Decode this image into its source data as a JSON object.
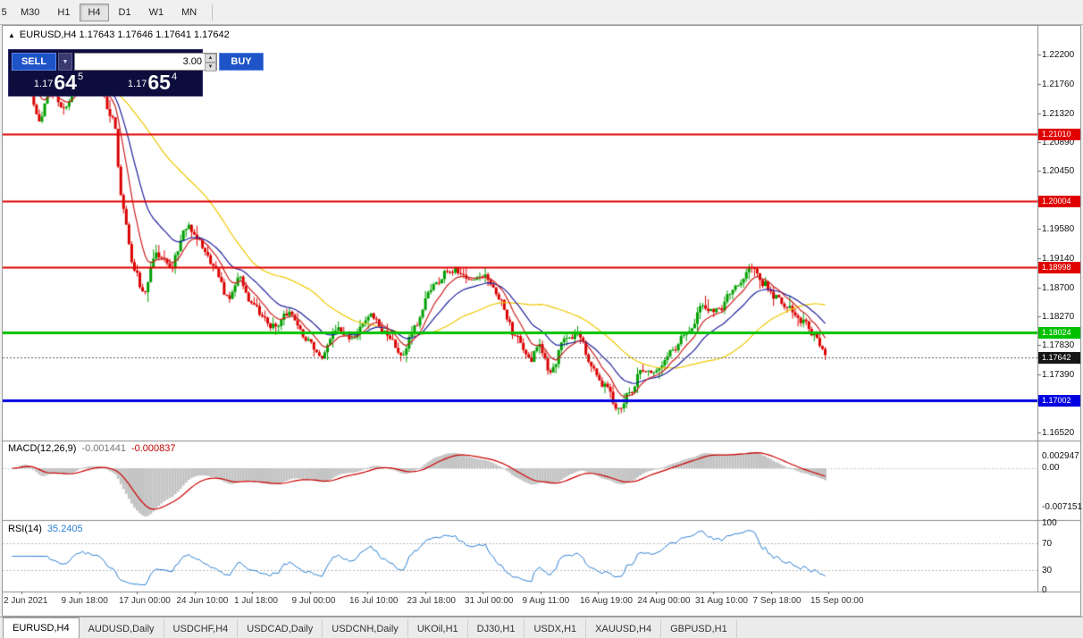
{
  "toolbar": {
    "timeframes": [
      {
        "label": "5",
        "active": false,
        "partial": true
      },
      {
        "label": "M30",
        "active": false,
        "partial": false
      },
      {
        "label": "H1",
        "active": false,
        "partial": false
      },
      {
        "label": "H4",
        "active": true,
        "partial": false
      },
      {
        "label": "D1",
        "active": false,
        "partial": false
      },
      {
        "label": "W1",
        "active": false,
        "partial": false
      },
      {
        "label": "MN",
        "active": false,
        "partial": false
      }
    ]
  },
  "chart_header": {
    "icon": "▲",
    "text": "EURUSD,H4 1.17643 1.17646 1.17641 1.17642"
  },
  "trade_panel": {
    "sell_label": "SELL",
    "buy_label": "BUY",
    "volume": "3.00",
    "dropdown_icon": "▼",
    "spinner_up": "▲",
    "spinner_down": "▼",
    "sell_price": {
      "prefix": "1.17",
      "big": "64",
      "sup": "5"
    },
    "buy_price": {
      "prefix": "1.17",
      "big": "65",
      "sup": "4"
    }
  },
  "price_scale": {
    "labels": [
      "1.22200",
      "1.21760",
      "1.21320",
      "1.20890",
      "1.20450",
      "1.20010",
      "1.19580",
      "1.19140",
      "1.18700",
      "1.18270",
      "1.17830",
      "1.17390",
      "1.16960",
      "1.16520"
    ]
  },
  "levels": [
    {
      "price": "1.21010",
      "color": "#e00000",
      "width": 2
    },
    {
      "price": "1.20004",
      "color": "#e00000",
      "width": 2
    },
    {
      "price": "1.18998",
      "color": "#e00000",
      "width": 2
    },
    {
      "price": "1.18024",
      "color": "#00c000",
      "width": 3
    },
    {
      "price": "1.17002",
      "color": "#0000e0",
      "width": 3
    }
  ],
  "current_price": {
    "price": "1.17642",
    "color": "#161616"
  },
  "macd": {
    "label": "MACD(12,26,9)",
    "value1": "-0.001441",
    "value2": "-0.000837",
    "scale_max": "0.002947",
    "scale_zero": "0.00",
    "scale_min": "-0.007151"
  },
  "rsi": {
    "label": "RSI(14)",
    "value": "35.2405",
    "scale": [
      "100",
      "70",
      "30",
      "0"
    ],
    "levels": [
      70,
      30
    ]
  },
  "time_axis": {
    "labels": [
      "2 Jun 2021",
      "9 Jun 18:00",
      "17 Jun 00:00",
      "24 Jun 10:00",
      "1 Jul 18:00",
      "9 Jul 00:00",
      "16 Jul 10:00",
      "23 Jul 18:00",
      "31 Jul 00:00",
      "9 Aug 11:00",
      "16 Aug 19:00",
      "24 Aug 00:00",
      "31 Aug 10:00",
      "7 Sep 18:00",
      "15 Sep 00:00"
    ]
  },
  "tabs": [
    {
      "label": "EURUSD,H4",
      "active": true
    },
    {
      "label": "AUDUSD,Daily",
      "active": false
    },
    {
      "label": "USDCHF,H4",
      "active": false
    },
    {
      "label": "USDCAD,Daily",
      "active": false
    },
    {
      "label": "USDCNH,Daily",
      "active": false
    },
    {
      "label": "UKOil,H1",
      "active": false
    },
    {
      "label": "DJ30,H1",
      "active": false
    },
    {
      "label": "USDX,H1",
      "active": false
    },
    {
      "label": "XAUUSD,H4",
      "active": false
    },
    {
      "label": "GBPUSD,H1",
      "active": false
    }
  ],
  "chart_data": {
    "type": "candlestick",
    "symbol": "EURUSD",
    "timeframe": "H4",
    "current_bar": {
      "open": 1.17643,
      "high": 1.17646,
      "low": 1.17641,
      "close": 1.17642
    },
    "price_axis_range": [
      1.16425,
      1.2255
    ],
    "horizontal_levels": [
      1.2101,
      1.20004,
      1.18998,
      1.18024,
      1.17002
    ],
    "candle_count": 300,
    "up_color": "#00a000",
    "down_color": "#dc0000",
    "ma_lines": [
      {
        "period": 50,
        "type": "sma",
        "color": "#f0c800"
      },
      {
        "period": 21,
        "type": "ema",
        "color": "#2020a0"
      },
      {
        "period": 9,
        "type": "ema",
        "color": "#cc2020"
      }
    ],
    "indicators": [
      {
        "name": "MACD",
        "params": [
          12,
          26,
          9
        ],
        "last_values": [
          -0.001441,
          -0.000837
        ],
        "histogram_color": "#c4c4c4",
        "signal_color": "#cc0000"
      },
      {
        "name": "RSI",
        "params": [
          14
        ],
        "last_value": 35.2405,
        "line_color": "#2a7fd4"
      }
    ],
    "price_path": [
      [
        0.0,
        1.2185
      ],
      [
        0.011,
        1.2215
      ],
      [
        0.035,
        1.212
      ],
      [
        0.046,
        1.217
      ],
      [
        0.063,
        1.214
      ],
      [
        0.084,
        1.2185
      ],
      [
        0.106,
        1.2175
      ],
      [
        0.125,
        1.212
      ],
      [
        0.136,
        1.199
      ],
      [
        0.15,
        1.19
      ],
      [
        0.161,
        1.186
      ],
      [
        0.178,
        1.192
      ],
      [
        0.194,
        1.19
      ],
      [
        0.216,
        1.196
      ],
      [
        0.227,
        1.1945
      ],
      [
        0.249,
        1.19
      ],
      [
        0.265,
        1.1855
      ],
      [
        0.279,
        1.1885
      ],
      [
        0.298,
        1.184
      ],
      [
        0.32,
        1.181
      ],
      [
        0.34,
        1.183
      ],
      [
        0.364,
        1.179
      ],
      [
        0.38,
        1.1765
      ],
      [
        0.399,
        1.181
      ],
      [
        0.419,
        1.1795
      ],
      [
        0.441,
        1.183
      ],
      [
        0.461,
        1.18
      ],
      [
        0.479,
        1.177
      ],
      [
        0.496,
        1.181
      ],
      [
        0.515,
        1.187
      ],
      [
        0.534,
        1.189
      ],
      [
        0.55,
        1.1895
      ],
      [
        0.567,
        1.188
      ],
      [
        0.583,
        1.1885
      ],
      [
        0.6,
        1.185
      ],
      [
        0.618,
        1.18
      ],
      [
        0.636,
        1.176
      ],
      [
        0.649,
        1.178
      ],
      [
        0.662,
        1.1745
      ],
      [
        0.68,
        1.179
      ],
      [
        0.695,
        1.18
      ],
      [
        0.713,
        1.1755
      ],
      [
        0.728,
        1.172
      ],
      [
        0.746,
        1.169
      ],
      [
        0.759,
        1.171
      ],
      [
        0.775,
        1.1745
      ],
      [
        0.792,
        1.174
      ],
      [
        0.811,
        1.1775
      ],
      [
        0.83,
        1.18
      ],
      [
        0.849,
        1.184
      ],
      [
        0.868,
        1.1835
      ],
      [
        0.888,
        1.187
      ],
      [
        0.91,
        1.19
      ],
      [
        0.925,
        1.1875
      ],
      [
        0.94,
        1.1855
      ],
      [
        0.956,
        1.184
      ],
      [
        0.972,
        1.182
      ],
      [
        0.987,
        1.18
      ],
      [
        0.996,
        1.1775
      ],
      [
        1.0,
        1.1764
      ]
    ]
  }
}
